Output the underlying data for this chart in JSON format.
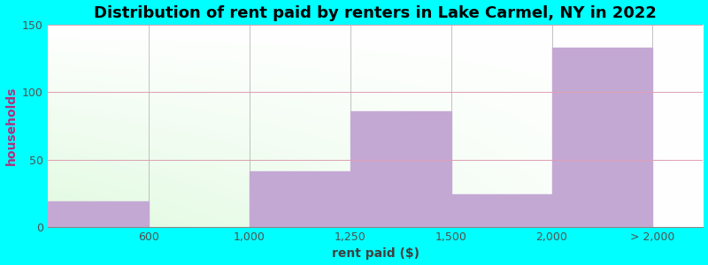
{
  "title": "Distribution of rent paid by renters in Lake Carmel, NY in 2022",
  "xlabel": "rent paid ($)",
  "ylabel": "households",
  "bar_labels": [
    "600",
    "1,000",
    "1,250",
    "1,500",
    "2,000",
    "> 2,000"
  ],
  "bar_values": [
    19,
    0,
    41,
    86,
    24,
    133
  ],
  "bar_color": "#C4A8D4",
  "ylim": [
    0,
    150
  ],
  "yticks": [
    0,
    50,
    100,
    150
  ],
  "background_outer": "#00FFFF",
  "grid_color": "#dda0b0",
  "title_fontsize": 13,
  "axis_label_fontsize": 10,
  "tick_fontsize": 9,
  "ylabel_color": "#b03080",
  "xlabel_color": "#404040",
  "tick_label_color": "#505050",
  "bar_left_edges": [
    0,
    1,
    2,
    3,
    4,
    5
  ],
  "bar_widths": [
    1,
    1,
    1,
    1,
    1,
    1
  ],
  "tick_positions": [
    1,
    2,
    3,
    4,
    5,
    6
  ],
  "xlim": [
    0,
    6.5
  ]
}
